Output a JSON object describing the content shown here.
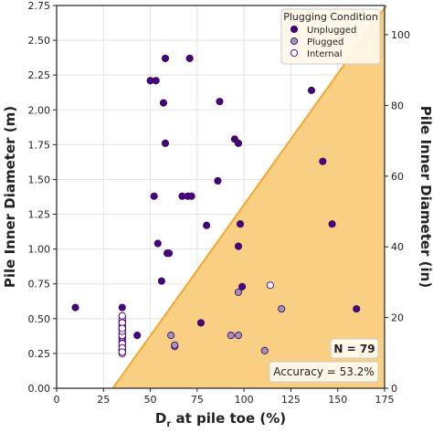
{
  "chart_data": {
    "type": "scatter",
    "xlabel_main": "D",
    "xlabel_sub": "r",
    "xlabel_rest": " at pile toe (%)",
    "ylabel": "Pile Inner Diameter (m)",
    "ylabel_right": "Pile Inner Diameter (in)",
    "xlim": [
      0,
      175
    ],
    "ylim": [
      0,
      2.75
    ],
    "ylim_right_in": [
      0,
      108.27
    ],
    "x_ticks": [
      "0",
      "25",
      "50",
      "75",
      "100",
      "125",
      "150",
      "175"
    ],
    "y_ticks": [
      "0.00",
      "0.25",
      "0.50",
      "0.75",
      "1.00",
      "1.25",
      "1.50",
      "1.75",
      "2.00",
      "2.25",
      "2.50",
      "2.75"
    ],
    "y_right_ticks": [
      "0",
      "20",
      "40",
      "60",
      "80",
      "100"
    ],
    "grid": true,
    "boundary_line": {
      "x": [
        30,
        176
      ],
      "y": [
        0,
        2.75
      ],
      "fill_color": "#f9cf84",
      "line_color": "#f0a830"
    },
    "legend": {
      "title": "Plugging Condition",
      "position": "top-right",
      "entries": [
        {
          "label": "Unplugged",
          "color": "#4b0082"
        },
        {
          "label": "Plugged",
          "color": "#9a9aaa"
        },
        {
          "label": "Internal",
          "color": "#ffffff"
        }
      ]
    },
    "annotations": {
      "n": "N = 79",
      "accuracy": "Accuracy = 53.2%"
    },
    "series": [
      {
        "name": "Unplugged",
        "color": "#4b0082",
        "x": [
          10,
          35,
          35,
          35,
          35,
          35,
          35,
          35,
          35,
          43,
          50,
          53,
          57,
          58,
          58,
          52,
          54,
          56,
          59,
          60,
          67,
          70,
          72,
          71,
          87,
          86,
          80,
          77,
          95,
          97,
          97,
          98,
          99,
          136,
          142,
          147,
          160
        ],
        "y": [
          0.58,
          0.58,
          0.52,
          0.47,
          0.43,
          0.36,
          0.33,
          0.3,
          0.27,
          0.38,
          2.21,
          2.21,
          2.05,
          1.76,
          2.37,
          1.38,
          1.04,
          0.77,
          0.97,
          0.97,
          1.38,
          1.38,
          1.38,
          2.37,
          2.06,
          1.49,
          1.17,
          0.47,
          1.79,
          1.76,
          1.02,
          1.18,
          0.73,
          2.14,
          1.63,
          1.18,
          0.57
        ]
      },
      {
        "name": "Plugged",
        "color": "#9a9aaa",
        "x": [
          61,
          63,
          63,
          93,
          97,
          97,
          111,
          120
        ],
        "y": [
          0.38,
          0.3,
          0.31,
          0.38,
          0.38,
          0.69,
          0.27,
          0.57
        ]
      },
      {
        "name": "Internal",
        "color": "#ffffff",
        "x": [
          35,
          35,
          35,
          35,
          35,
          35,
          35,
          35,
          35,
          35,
          35,
          35,
          35,
          35,
          35,
          35,
          35,
          35,
          35,
          35,
          35,
          35,
          35,
          35,
          35,
          35,
          35,
          35,
          35,
          35,
          35,
          35,
          35,
          114
        ],
        "y": [
          0.25,
          0.27,
          0.28,
          0.3,
          0.31,
          0.32,
          0.33,
          0.34,
          0.35,
          0.36,
          0.37,
          0.38,
          0.39,
          0.4,
          0.41,
          0.42,
          0.43,
          0.44,
          0.45,
          0.46,
          0.47,
          0.48,
          0.49,
          0.5,
          0.52,
          0.38,
          0.41,
          0.44,
          0.47,
          0.32,
          0.29,
          0.26,
          0.43,
          0.74
        ]
      }
    ]
  }
}
